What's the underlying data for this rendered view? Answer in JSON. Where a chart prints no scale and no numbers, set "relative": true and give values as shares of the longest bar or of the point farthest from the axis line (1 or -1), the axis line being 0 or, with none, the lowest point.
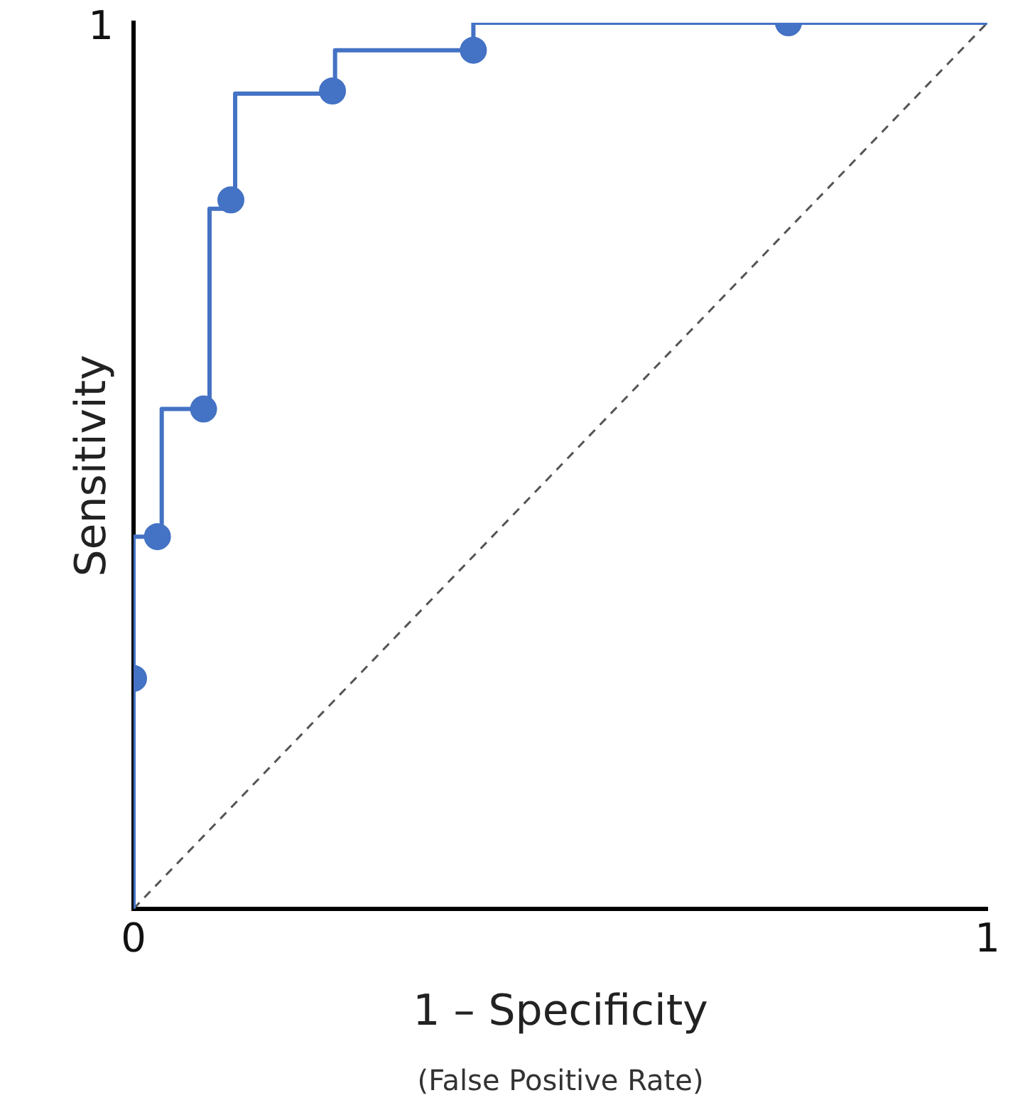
{
  "chart_data": {
    "type": "line",
    "xlabel": "1 – Specificity",
    "ylabel": "Sensitivity",
    "annotations": [
      "1",
      "(False Positive Rate)"
    ],
    "relative": true,
    "xlim": [
      0,
      1
    ],
    "xticks": [
      0,
      1
    ],
    "grid": false,
    "legend": false,
    "series": [
      {
        "type": "step",
        "color": "#4472c4",
        "marker": "none",
        "x": [
          0,
          0,
          0.033,
          0.089,
          0.119,
          0.236,
          0.398,
          1
        ],
        "values": [
          0,
          0.42,
          0.564,
          0.79,
          0.92,
          0.969,
          1.0,
          1.0
        ]
      },
      {
        "type": "scatter",
        "color": "#4472c4",
        "marker": "circle",
        "x": [
          0,
          0.028,
          0.082,
          0.114,
          0.233,
          0.398,
          0.767
        ],
        "values": [
          0.26,
          0.42,
          0.564,
          0.8,
          0.923,
          0.969,
          1.0
        ]
      },
      {
        "type": "line",
        "color": "#555555",
        "marker": "none",
        "line_style": "dashed",
        "x": [
          0,
          1
        ],
        "values": [
          0,
          1
        ]
      }
    ]
  }
}
